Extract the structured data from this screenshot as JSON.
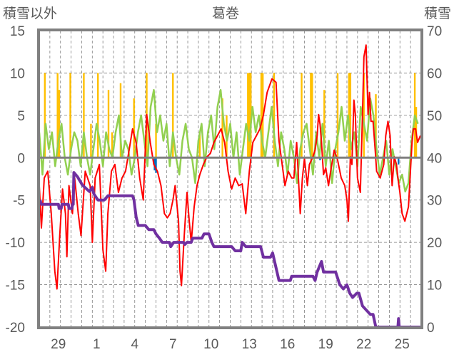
{
  "chart_data": {
    "type": "line",
    "title": "葛巻",
    "ylabel": "積雪以外",
    "y2label": "積雪",
    "xlim": [
      0,
      30
    ],
    "ylim": [
      -20,
      15
    ],
    "y2lim": [
      0,
      70
    ],
    "yticks": [
      15,
      10,
      5,
      0,
      -5,
      -10,
      -15,
      -20
    ],
    "y2ticks": [
      70,
      60,
      50,
      40,
      30,
      20,
      10,
      0
    ],
    "xtick_positions": [
      1.5,
      4.5,
      7.5,
      10.5,
      13.5,
      16.5,
      19.5,
      22.5,
      25.5,
      28.5
    ],
    "xtick_labels": [
      "29",
      "1",
      "4",
      "7",
      "10",
      "13",
      "16",
      "19",
      "22",
      "25"
    ],
    "grid": true,
    "colors": {
      "red": "#ff0000",
      "green": "#92d050",
      "orange": "#ffc000",
      "blue": "#0070c0",
      "purple": "#7030a0",
      "axis": "#808080",
      "text": "#595959"
    },
    "series": [
      {
        "name": "orange-bars",
        "type": "bar",
        "axis": "left",
        "color": "#ffc000",
        "points": [
          [
            0.44,
            10
          ],
          [
            1.44,
            10
          ],
          [
            1.56,
            8
          ],
          [
            2.44,
            10
          ],
          [
            3.5,
            10
          ],
          [
            4.06,
            4
          ],
          [
            4.61,
            10
          ],
          [
            5.44,
            8
          ],
          [
            5.72,
            3
          ],
          [
            6.39,
            8.8
          ],
          [
            7.44,
            7
          ],
          [
            8.44,
            10
          ],
          [
            9.17,
            4
          ],
          [
            10.5,
            10
          ],
          [
            12.61,
            3
          ],
          [
            14.39,
            7
          ],
          [
            14.72,
            5
          ],
          [
            16.39,
            10
          ],
          [
            16.5,
            10
          ],
          [
            16.61,
            10
          ],
          [
            17.44,
            10
          ],
          [
            17.56,
            10
          ],
          [
            18.44,
            10
          ],
          [
            20.61,
            10
          ],
          [
            21.33,
            10
          ],
          [
            21.44,
            10
          ],
          [
            22.39,
            8
          ],
          [
            23.44,
            10
          ],
          [
            24.33,
            10
          ],
          [
            24.44,
            10
          ],
          [
            25.5,
            10
          ],
          [
            26.44,
            7.5
          ],
          [
            29.5,
            10
          ],
          [
            29.61,
            6
          ]
        ]
      },
      {
        "name": "blue-bars",
        "type": "bar",
        "axis": "left",
        "color": "#0070c0",
        "points": [
          [
            9.06,
            -1.5
          ],
          [
            9.17,
            -1.8
          ],
          [
            22.06,
            -0.3
          ],
          [
            28.22,
            -0.8
          ]
        ]
      },
      {
        "name": "green-line",
        "type": "line",
        "axis": "left",
        "color": "#92d050",
        "x_start": 0,
        "x_step": 0.25,
        "values": [
          3,
          -2,
          4,
          1,
          3,
          -1,
          2,
          4,
          0,
          -2,
          1,
          3,
          2,
          -1,
          3,
          0,
          -2,
          1,
          4,
          2,
          -1,
          3,
          1,
          0,
          3,
          5,
          0,
          2,
          1,
          -2,
          0,
          3,
          5,
          2,
          -1,
          6,
          8,
          3,
          5,
          2,
          4,
          -1,
          3,
          0,
          -2,
          2,
          4,
          1,
          0,
          -3,
          2,
          4,
          -1,
          3,
          5,
          1,
          6,
          8,
          4,
          2,
          4,
          0,
          3,
          -2,
          1,
          4,
          2,
          6,
          3,
          5,
          2,
          0,
          3,
          6,
          2,
          -1,
          3,
          1,
          -2,
          2,
          0,
          -3,
          1,
          3,
          4,
          1,
          -2,
          3,
          0,
          4,
          -1,
          2,
          -3,
          1,
          3,
          6,
          2,
          5,
          1,
          3,
          -1,
          6,
          4,
          2,
          7,
          5,
          1,
          -2,
          0,
          2,
          -2,
          1,
          -1,
          -3,
          -2,
          -4,
          -3,
          2,
          5,
          4
        ]
      },
      {
        "name": "red-line",
        "type": "line",
        "axis": "left",
        "color": "#ff0000",
        "points": [
          [
            0,
            -3.3
          ],
          [
            0.17,
            -8.3
          ],
          [
            0.39,
            -2.4
          ],
          [
            0.67,
            -1.6
          ],
          [
            0.94,
            -6.6
          ],
          [
            1.22,
            -13.4
          ],
          [
            1.39,
            -15.5
          ],
          [
            1.61,
            -9.2
          ],
          [
            1.83,
            -3.7
          ],
          [
            2.06,
            -6.6
          ],
          [
            2.17,
            -11.7
          ],
          [
            2.33,
            -3.3
          ],
          [
            2.61,
            -6.6
          ],
          [
            2.78,
            -2.4
          ],
          [
            3.06,
            -6.6
          ],
          [
            3.28,
            -9.2
          ],
          [
            3.61,
            -1.6
          ],
          [
            4.0,
            -3.3
          ],
          [
            4.17,
            -10
          ],
          [
            4.39,
            -2.4
          ],
          [
            4.72,
            -0.8
          ],
          [
            5.0,
            -10.9
          ],
          [
            5.22,
            -13.4
          ],
          [
            5.39,
            -6.6
          ],
          [
            5.67,
            -1.6
          ],
          [
            5.94,
            -0.8
          ],
          [
            6.22,
            -4.1
          ],
          [
            6.5,
            -2.4
          ],
          [
            6.78,
            -1.6
          ],
          [
            7.06,
            0.9
          ],
          [
            7.33,
            3.4
          ],
          [
            7.61,
            1.8
          ],
          [
            7.89,
            -2.4
          ],
          [
            8.17,
            -5
          ],
          [
            8.44,
            5.1
          ],
          [
            8.72,
            1.8
          ],
          [
            9.0,
            -0.8
          ],
          [
            9.28,
            -1.6
          ],
          [
            9.56,
            -3.3
          ],
          [
            9.83,
            -6.6
          ],
          [
            10.06,
            -7.1
          ],
          [
            10.28,
            -6.6
          ],
          [
            10.5,
            -5
          ],
          [
            10.67,
            -3.3
          ],
          [
            10.94,
            -7.5
          ],
          [
            11.06,
            -13.4
          ],
          [
            11.17,
            -15.1
          ],
          [
            11.39,
            -9.2
          ],
          [
            11.61,
            -4.1
          ],
          [
            11.78,
            -7.5
          ],
          [
            11.94,
            -10
          ],
          [
            12.17,
            -5.8
          ],
          [
            12.39,
            -3.3
          ],
          [
            12.61,
            -2
          ],
          [
            12.89,
            -0.8
          ],
          [
            13.17,
            0.1
          ],
          [
            13.44,
            0.5
          ],
          [
            13.72,
            1.8
          ],
          [
            14.0,
            2.6
          ],
          [
            14.28,
            3.4
          ],
          [
            14.56,
            1.8
          ],
          [
            14.83,
            -1.6
          ],
          [
            15.11,
            -3.7
          ],
          [
            15.39,
            -2.4
          ],
          [
            15.67,
            -3.3
          ],
          [
            15.94,
            -3.1
          ],
          [
            16.22,
            -6.6
          ],
          [
            16.5,
            -1.6
          ],
          [
            16.78,
            1.8
          ],
          [
            17.06,
            2.6
          ],
          [
            17.33,
            3.4
          ],
          [
            17.6,
            5
          ],
          [
            17.9,
            7.7
          ],
          [
            18.28,
            9.3
          ],
          [
            18.6,
            8.9
          ],
          [
            18.83,
            2
          ],
          [
            19.1,
            -1
          ],
          [
            19.3,
            -3.3
          ],
          [
            19.56,
            -1.6
          ],
          [
            19.83,
            -2.4
          ],
          [
            20.0,
            -2.4
          ],
          [
            20.22,
            1.8
          ],
          [
            20.39,
            -3.3
          ],
          [
            20.5,
            -6.6
          ],
          [
            20.67,
            -2.4
          ],
          [
            20.83,
            -0.1
          ],
          [
            21.06,
            -3.3
          ],
          [
            21.22,
            -0.8
          ],
          [
            21.5,
            0.1
          ],
          [
            21.67,
            0.9
          ],
          [
            21.83,
            2.6
          ],
          [
            21.94,
            5.1
          ],
          [
            22.06,
            3.9
          ],
          [
            22.17,
            1.8
          ],
          [
            22.33,
            -2
          ],
          [
            22.5,
            -1.2
          ],
          [
            22.72,
            -3.3
          ],
          [
            22.89,
            -1.6
          ],
          [
            23.17,
            0.9
          ],
          [
            23.44,
            -0.3
          ],
          [
            23.72,
            -2.4
          ],
          [
            24.0,
            -3.3
          ],
          [
            24.17,
            -5
          ],
          [
            24.28,
            -7.5
          ],
          [
            24.44,
            0.1
          ],
          [
            24.56,
            -0.8
          ],
          [
            24.72,
            6.8
          ],
          [
            24.83,
            5.1
          ],
          [
            25.0,
            -2.4
          ],
          [
            25.22,
            -4.1
          ],
          [
            25.39,
            5.1
          ],
          [
            25.5,
            11.9
          ],
          [
            25.67,
            13.3
          ],
          [
            25.83,
            5.1
          ],
          [
            25.94,
            7.7
          ],
          [
            26.06,
            4.3
          ],
          [
            26.22,
            4.3
          ],
          [
            26.39,
            0.9
          ],
          [
            26.5,
            -1.6
          ],
          [
            26.78,
            -2.4
          ],
          [
            27.06,
            -0.8
          ],
          [
            27.22,
            2.6
          ],
          [
            27.39,
            4.3
          ],
          [
            27.56,
            2.6
          ],
          [
            27.72,
            -3.3
          ],
          [
            27.89,
            0.1
          ],
          [
            28.06,
            -0.8
          ],
          [
            28.17,
            -2.4
          ],
          [
            28.33,
            -4.1
          ],
          [
            28.5,
            -6.6
          ],
          [
            28.72,
            -7.5
          ],
          [
            29.0,
            -5.8
          ],
          [
            29.28,
            1.8
          ],
          [
            29.39,
            3.4
          ],
          [
            29.56,
            3.4
          ],
          [
            29.72,
            1.8
          ],
          [
            29.94,
            2.6
          ]
        ]
      },
      {
        "name": "purple-snow-depth",
        "type": "line",
        "axis": "right",
        "color": "#7030a0",
        "points": [
          [
            0.06,
            30
          ],
          [
            0.17,
            29
          ],
          [
            1.5,
            29
          ],
          [
            1.56,
            28
          ],
          [
            1.72,
            28
          ],
          [
            1.78,
            29
          ],
          [
            2.28,
            29
          ],
          [
            2.33,
            28
          ],
          [
            2.56,
            28
          ],
          [
            2.61,
            29
          ],
          [
            2.67,
            29
          ],
          [
            2.72,
            36.5
          ],
          [
            3.0,
            35.5
          ],
          [
            3.39,
            33.5
          ],
          [
            3.94,
            32
          ],
          [
            4.17,
            33
          ],
          [
            4.28,
            31.5
          ],
          [
            4.61,
            30
          ],
          [
            5.11,
            30
          ],
          [
            5.39,
            31
          ],
          [
            7.33,
            31
          ],
          [
            7.44,
            30
          ],
          [
            7.61,
            26
          ],
          [
            7.78,
            24
          ],
          [
            8.33,
            24
          ],
          [
            8.61,
            23
          ],
          [
            9.0,
            23
          ],
          [
            9.17,
            22
          ],
          [
            9.44,
            21
          ],
          [
            9.67,
            20
          ],
          [
            10.22,
            20
          ],
          [
            10.33,
            19
          ],
          [
            10.56,
            20
          ],
          [
            11.33,
            20
          ],
          [
            11.44,
            19.5
          ],
          [
            11.61,
            20
          ],
          [
            11.94,
            20
          ],
          [
            12.06,
            21
          ],
          [
            12.78,
            21
          ],
          [
            12.94,
            22
          ],
          [
            13.33,
            22
          ],
          [
            13.56,
            20
          ],
          [
            13.72,
            19
          ],
          [
            15.11,
            19
          ],
          [
            15.39,
            18
          ],
          [
            15.83,
            18
          ],
          [
            15.94,
            20
          ],
          [
            16.22,
            19
          ],
          [
            17.39,
            19
          ],
          [
            17.61,
            16.5
          ],
          [
            18.17,
            16.5
          ],
          [
            18.33,
            17.5
          ],
          [
            18.83,
            11
          ],
          [
            19.72,
            11
          ],
          [
            19.83,
            12
          ],
          [
            21.5,
            12
          ],
          [
            21.67,
            11
          ],
          [
            21.83,
            13
          ],
          [
            22.17,
            15.5
          ],
          [
            22.33,
            13
          ],
          [
            23.28,
            13
          ],
          [
            23.61,
            10
          ],
          [
            23.89,
            9
          ],
          [
            24.17,
            10
          ],
          [
            24.39,
            8
          ],
          [
            24.61,
            7
          ],
          [
            24.94,
            8
          ],
          [
            25.11,
            8
          ],
          [
            25.39,
            5
          ],
          [
            26.0,
            3
          ],
          [
            26.22,
            3
          ],
          [
            26.44,
            0
          ],
          [
            28.17,
            0
          ],
          [
            28.22,
            2
          ],
          [
            28.28,
            0
          ],
          [
            29.94,
            0
          ]
        ]
      }
    ]
  }
}
